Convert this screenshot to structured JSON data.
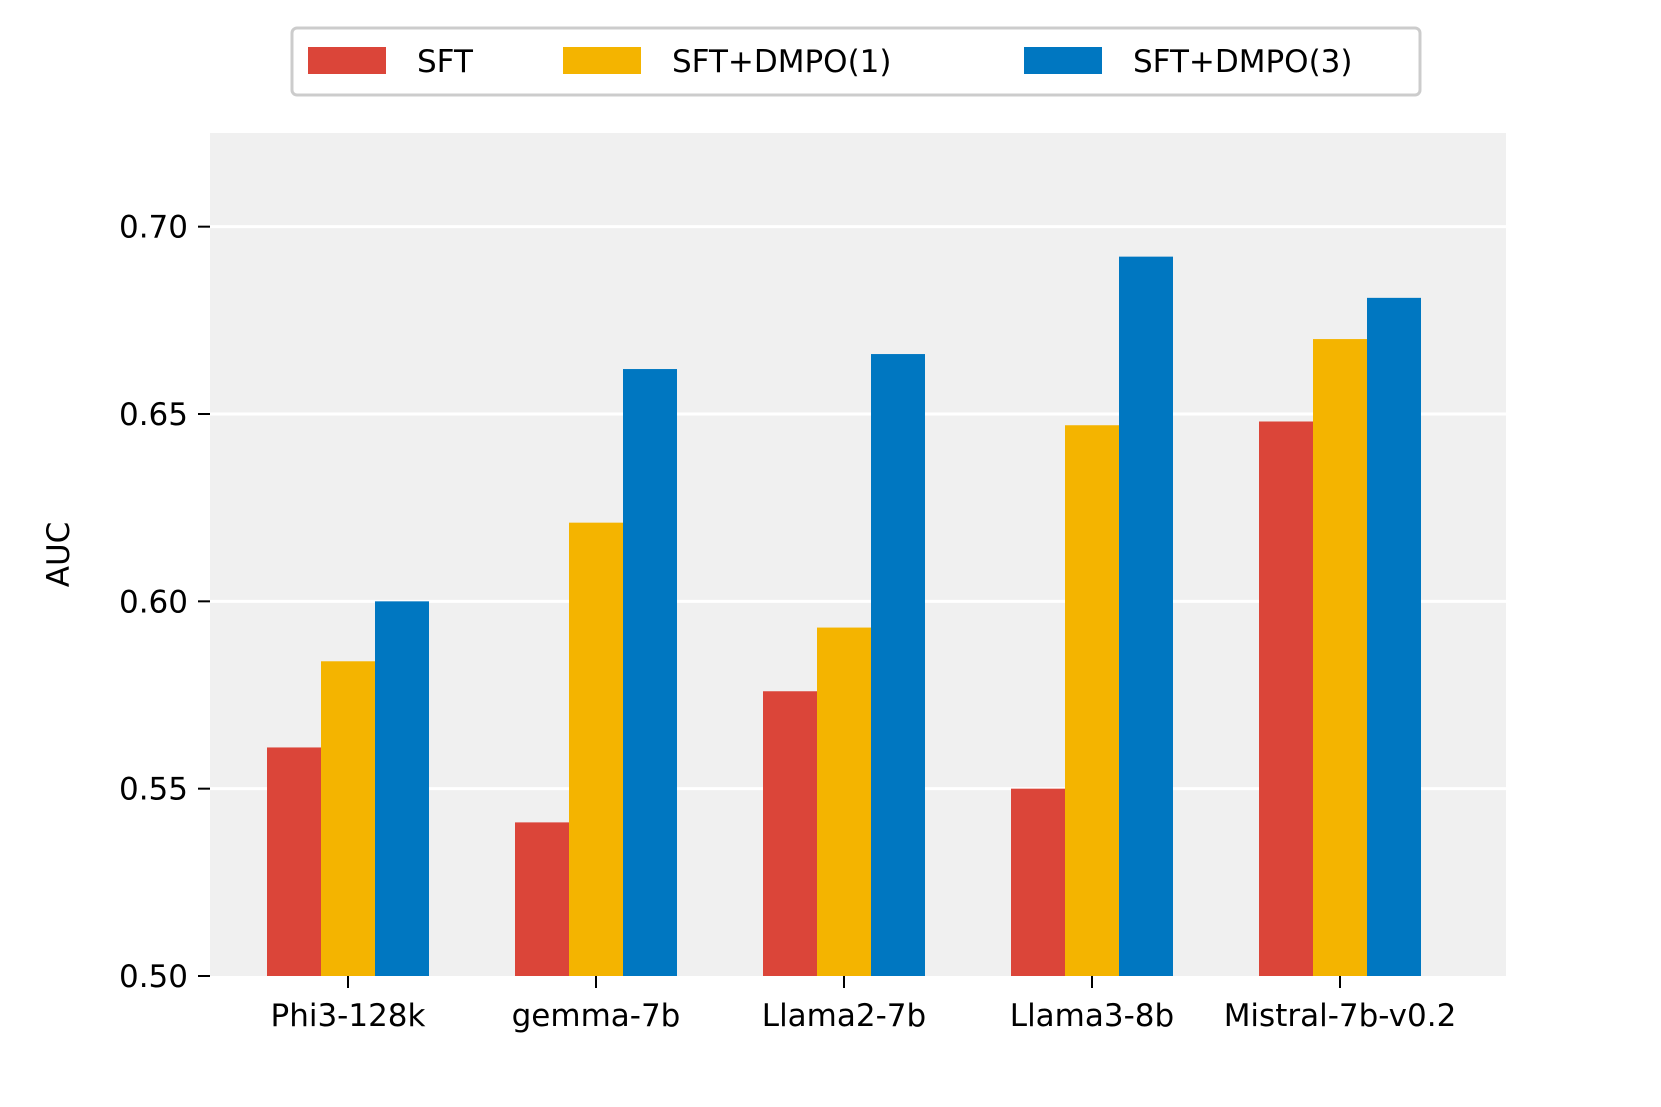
{
  "chart_data": {
    "type": "bar",
    "title": "",
    "xlabel": "",
    "ylabel": "AUC",
    "ylim": [
      0.5,
      0.725
    ],
    "yticks": [
      0.5,
      0.55,
      0.6,
      0.65,
      0.7
    ],
    "ytick_labels": [
      "0.50",
      "0.55",
      "0.60",
      "0.65",
      "0.70"
    ],
    "grid": true,
    "legend_position": "top-center",
    "categories": [
      "Phi3-128k",
      "gemma-7b",
      "Llama2-7b",
      "Llama3-8b",
      "Mistral-7b-v0.2"
    ],
    "series": [
      {
        "name": "SFT",
        "color": "#db4539",
        "values": [
          0.561,
          0.541,
          0.576,
          0.55,
          0.648
        ]
      },
      {
        "name": "SFT+DMPO(1)",
        "color": "#f4b400",
        "values": [
          0.584,
          0.621,
          0.593,
          0.647,
          0.67
        ]
      },
      {
        "name": "SFT+DMPO(3)",
        "color": "#0077c1",
        "values": [
          0.6,
          0.662,
          0.666,
          0.692,
          0.681
        ]
      }
    ]
  },
  "colors": {
    "plot_background": "#f0f0f0",
    "grid": "#ffffff"
  }
}
